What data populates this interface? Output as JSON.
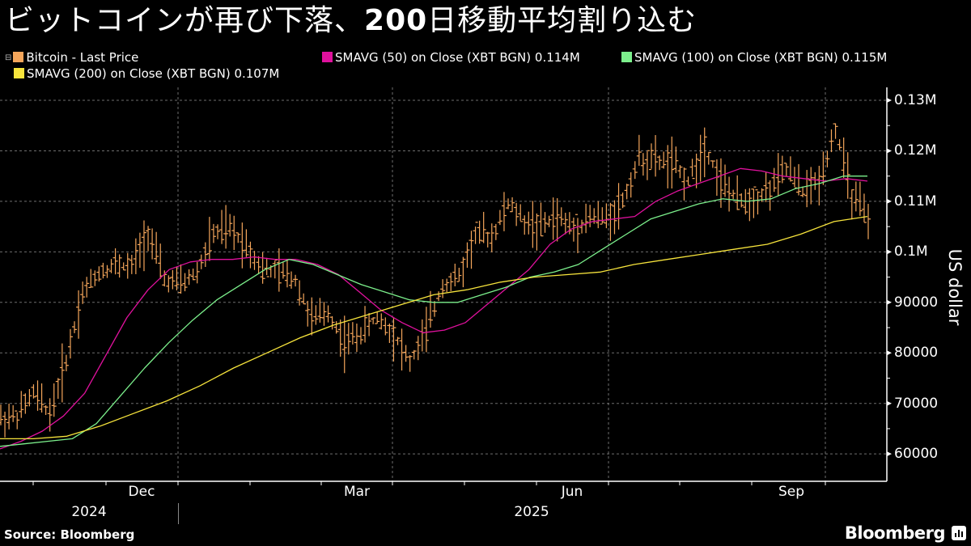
{
  "header": {
    "title_part1": "ビットコインが再び下落、",
    "title_bold": "200",
    "title_part2": "日移動平均割り込む"
  },
  "legend": [
    {
      "label": "Bitcoin - Last Price",
      "color": "#f5a65b"
    },
    {
      "label": "SMAVG (50)  on Close (XBT BGN) 0.114M",
      "color": "#e0119d"
    },
    {
      "label": "SMAVG (100)  on Close (XBT BGN) 0.115M",
      "color": "#7cf08c"
    },
    {
      "label": "SMAVG (200)  on Close (XBT BGN) 0.107M",
      "color": "#f7e43c"
    }
  ],
  "axis": {
    "y_title": "US dollar",
    "y_ticks": [
      "0.13M",
      "0.12M",
      "0.11M",
      "0.1M",
      "90000",
      "80000",
      "70000",
      "60000"
    ],
    "x_months": [
      "Dec",
      "Mar",
      "Jun",
      "Sep"
    ],
    "x_years": [
      "2024",
      "2025"
    ]
  },
  "footer": {
    "source": "Source:  Bloomberg",
    "brand": "Bloomberg"
  },
  "colors": {
    "background": "#000000",
    "price": "#f5a65b",
    "sma50": "#e0119d",
    "sma100": "#7cf08c",
    "sma200": "#f7e43c",
    "grid": "#8a8a8a",
    "axis": "#ffffff"
  },
  "chart_data": {
    "type": "line",
    "title": "ビットコインが再び下落、200日移動平均割り込む",
    "xlabel": "",
    "ylabel": "US dollar",
    "ylim": [
      54600,
      131000
    ],
    "y_ticks": [
      60000,
      70000,
      80000,
      90000,
      100000,
      110000,
      120000,
      130000
    ],
    "x_tick_labels": [
      "Dec",
      "Mar",
      "Jun",
      "Sep"
    ],
    "x_year_labels": [
      "2024",
      "2025"
    ],
    "x_range": [
      "2024-10-15",
      "2025-10-17"
    ],
    "grid": true,
    "legend_position": "top",
    "x": [
      "2024-10-15",
      "2024-10-22",
      "2024-10-29",
      "2024-11-05",
      "2024-11-12",
      "2024-11-19",
      "2024-11-26",
      "2024-12-03",
      "2024-12-10",
      "2024-12-17",
      "2024-12-24",
      "2024-12-31",
      "2025-01-07",
      "2025-01-14",
      "2025-01-21",
      "2025-01-28",
      "2025-02-04",
      "2025-02-11",
      "2025-02-18",
      "2025-02-25",
      "2025-03-04",
      "2025-03-11",
      "2025-03-18",
      "2025-03-25",
      "2025-04-01",
      "2025-04-08",
      "2025-04-15",
      "2025-04-22",
      "2025-04-29",
      "2025-05-06",
      "2025-05-13",
      "2025-05-20",
      "2025-05-27",
      "2025-06-03",
      "2025-06-10",
      "2025-06-17",
      "2025-06-24",
      "2025-07-01",
      "2025-07-08",
      "2025-07-15",
      "2025-07-22",
      "2025-07-29",
      "2025-08-05",
      "2025-08-12",
      "2025-08-19",
      "2025-08-26",
      "2025-09-02",
      "2025-09-09",
      "2025-09-16",
      "2025-09-23",
      "2025-09-30",
      "2025-10-07",
      "2025-10-14",
      "2025-10-17"
    ],
    "series": [
      {
        "name": "Bitcoin - Last Price",
        "color": "#f5a65b",
        "values": [
          67000,
          67500,
          72000,
          68000,
          78500,
          92000,
          96000,
          97500,
          97000,
          104000,
          94500,
          93500,
          96000,
          103500,
          104500,
          101500,
          96500,
          96000,
          94500,
          86500,
          88000,
          82000,
          84000,
          87000,
          84000,
          78000,
          84500,
          93500,
          95000,
          103500,
          103000,
          109500,
          106000,
          105000,
          107000,
          104500,
          107000,
          106500,
          110000,
          118500,
          118000,
          117500,
          114000,
          121000,
          114000,
          110000,
          110500,
          112500,
          116500,
          112000,
          114000,
          124500,
          111000,
          106500
        ]
      },
      {
        "name": "SMAVG (50)  on Close (XBT BGN)",
        "color": "#e0119d",
        "last": 114000,
        "values": [
          61000,
          62500,
          64500,
          67500,
          72000,
          79500,
          87000,
          92500,
          96500,
          98000,
          98500,
          98500,
          99000,
          98500,
          98500,
          97500,
          95500,
          92000,
          88500,
          86000,
          84000,
          84500,
          86000,
          89500,
          93000,
          96500,
          101500,
          104500,
          106000,
          106500,
          107000,
          110000,
          112000,
          113500,
          115000,
          116500,
          116000,
          115000,
          114500,
          114000,
          114500,
          114000
        ]
      },
      {
        "name": "SMAVG (100)  on Close (XBT BGN)",
        "color": "#7cf08c",
        "last": 115000,
        "values": [
          61500,
          62000,
          62500,
          63000,
          66000,
          71500,
          77000,
          82000,
          86500,
          90500,
          93500,
          96500,
          98500,
          97500,
          95500,
          93500,
          92000,
          90500,
          90000,
          90000,
          91500,
          93000,
          95000,
          96000,
          97500,
          100500,
          103500,
          106500,
          108000,
          109500,
          110500,
          110000,
          110500,
          112500,
          113500,
          115000,
          115000
        ]
      },
      {
        "name": "SMAVG (200)  on Close (XBT BGN)",
        "color": "#f7e43c",
        "last": 107000,
        "values": [
          63000,
          63000,
          63500,
          65500,
          68000,
          70500,
          73500,
          77000,
          80000,
          83000,
          85500,
          87500,
          89500,
          91500,
          92500,
          94000,
          95000,
          95500,
          96000,
          97500,
          98500,
          99500,
          100500,
          101500,
          103500,
          106000,
          107000
        ]
      }
    ]
  }
}
